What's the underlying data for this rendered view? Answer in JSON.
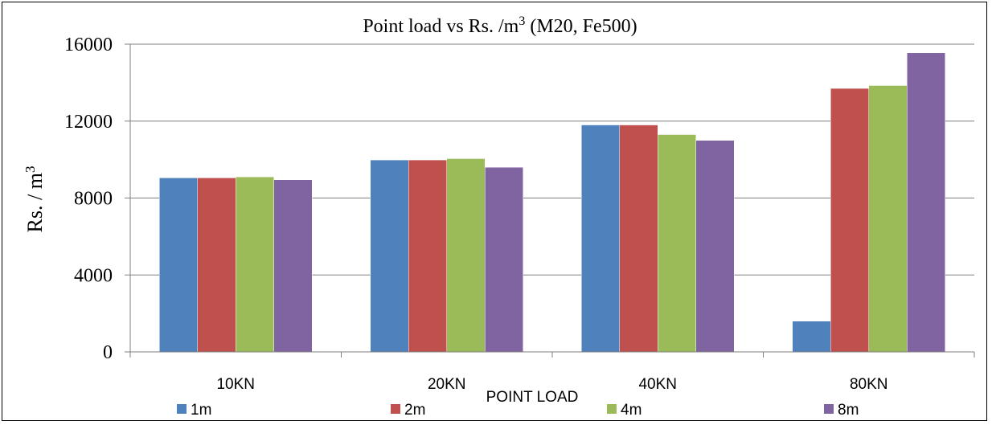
{
  "chart_data": {
    "type": "bar",
    "title": "Point load vs Rs. /m",
    "title_superscript": "3",
    "title_suffix": " (M20, Fe500)",
    "xlabel": "POINT LOAD",
    "ylabel": "Rs. / m",
    "ylabel_superscript": "3",
    "categories": [
      "10KN",
      "20KN",
      "40KN",
      "80KN"
    ],
    "ylim": [
      0,
      16000
    ],
    "yticks": [
      0,
      4000,
      8000,
      12000,
      16000
    ],
    "grid": true,
    "legend_position": "bottom",
    "series": [
      {
        "name": "1m",
        "color": "#4F81BD",
        "values": [
          9050,
          9980,
          11800,
          1600
        ]
      },
      {
        "name": "2m",
        "color": "#C0504D",
        "values": [
          9050,
          9980,
          11800,
          13700
        ]
      },
      {
        "name": "4m",
        "color": "#9BBB59",
        "values": [
          9100,
          10050,
          11300,
          13850
        ]
      },
      {
        "name": "8m",
        "color": "#8064A2",
        "values": [
          8950,
          9600,
          11000,
          15550
        ]
      }
    ]
  }
}
